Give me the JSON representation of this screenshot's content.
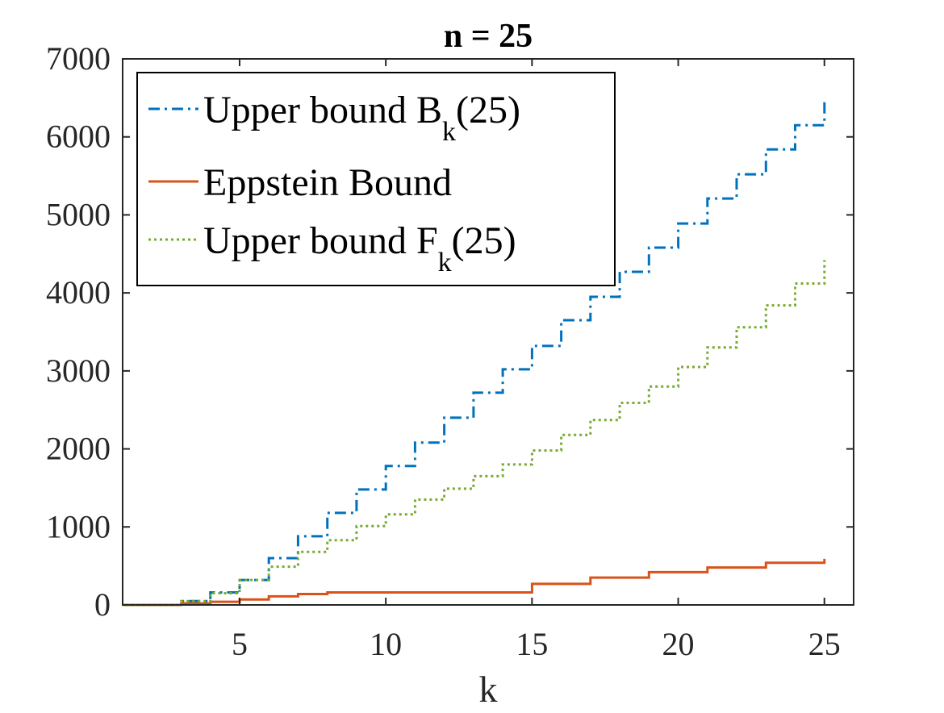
{
  "chart_data": {
    "type": "line",
    "title": "n = 25",
    "xlabel": "k",
    "ylabel": "",
    "xlim": [
      1,
      26
    ],
    "ylim": [
      0,
      7000
    ],
    "xticks": [
      "5",
      "10",
      "15",
      "20",
      "25"
    ],
    "yticks": [
      "0",
      "1000",
      "2000",
      "3000",
      "4000",
      "5000",
      "6000",
      "7000"
    ],
    "grid": false,
    "legend_position": "top-left",
    "step": "post",
    "x": [
      1,
      2,
      3,
      4,
      5,
      6,
      7,
      8,
      9,
      10,
      11,
      12,
      13,
      14,
      15,
      16,
      17,
      18,
      19,
      20,
      21,
      22,
      23,
      24,
      25
    ],
    "series": [
      {
        "name_main": "Upper bound B",
        "name_sub": "k",
        "name_tail": "(25)",
        "color": "#0072BD",
        "dash": "dashdot",
        "values": [
          0,
          0,
          50,
          160,
          320,
          600,
          880,
          1180,
          1480,
          1780,
          2080,
          2400,
          2720,
          3020,
          3320,
          3650,
          3950,
          4270,
          4580,
          4890,
          5210,
          5520,
          5840,
          6150,
          6450
        ]
      },
      {
        "name_main": "Eppstein Bound",
        "name_sub": "",
        "name_tail": "",
        "color": "#D95319",
        "dash": "solid",
        "values": [
          0,
          0,
          20,
          40,
          70,
          110,
          140,
          160,
          160,
          160,
          160,
          160,
          160,
          160,
          270,
          270,
          350,
          350,
          420,
          420,
          480,
          480,
          540,
          540,
          590
        ]
      },
      {
        "name_main": "Upper bound F",
        "name_sub": "k",
        "name_tail": "(25)",
        "color": "#77AC30",
        "dash": "dotted",
        "values": [
          0,
          0,
          50,
          150,
          320,
          490,
          680,
          830,
          1010,
          1160,
          1350,
          1490,
          1650,
          1800,
          1980,
          2180,
          2370,
          2590,
          2800,
          3050,
          3300,
          3560,
          3840,
          4120,
          4420
        ]
      }
    ]
  }
}
